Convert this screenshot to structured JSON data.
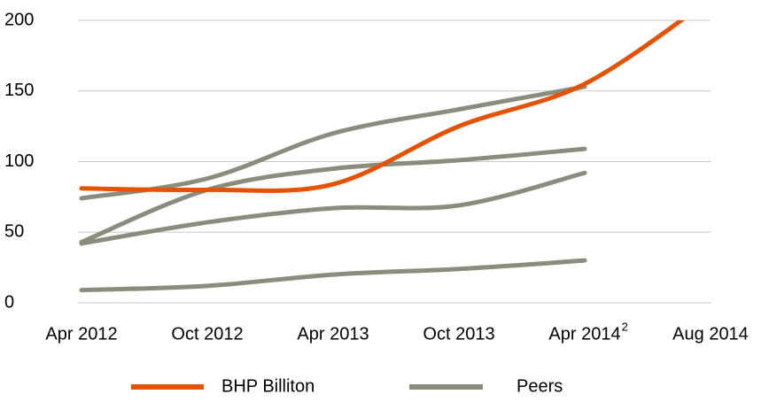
{
  "chart_data": {
    "type": "line",
    "categories": [
      "Apr 2012",
      "Oct 2012",
      "Apr 2013",
      "Oct 2013",
      "Apr 2014",
      "Aug 2014"
    ],
    "footnote_marker": {
      "category": 4,
      "label": "2"
    },
    "series": [
      {
        "name": "BHP Billiton",
        "color": "#e35205",
        "values": [
          81,
          80,
          84,
          125,
          155,
          215
        ]
      }
    ],
    "peers": {
      "name": "Peers",
      "color": "#8c8c7c",
      "lines": [
        [
          74,
          88,
          120,
          137,
          153,
          null
        ],
        [
          43,
          80,
          95,
          101,
          109,
          null
        ],
        [
          42,
          57,
          67,
          69,
          92,
          null
        ],
        [
          9,
          12,
          20,
          24,
          30,
          null
        ]
      ]
    },
    "ylim": [
      0,
      200
    ],
    "yticks": [
      0,
      50,
      100,
      150,
      200
    ],
    "grid": true,
    "legend": "bottom"
  }
}
